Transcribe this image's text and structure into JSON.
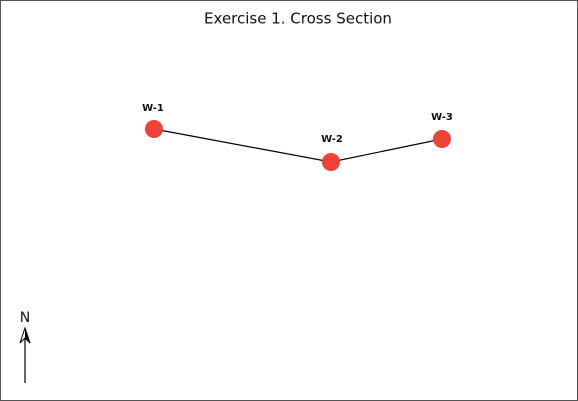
{
  "title": "Exercise 1. Cross Section",
  "nodes": [
    {
      "label": "W-1"
    },
    {
      "label": "W-2"
    },
    {
      "label": "W-3"
    }
  ],
  "north_arrow": {
    "label": "N"
  }
}
